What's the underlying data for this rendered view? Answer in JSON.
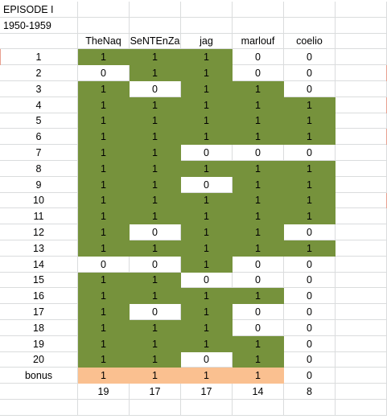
{
  "title": "EPISODE I",
  "subtitle": "1950-1959",
  "headers": [
    "TheNaq",
    "SeNTEnZa",
    "jag",
    "marlouf",
    "coelio"
  ],
  "rows": [
    {
      "label": "1",
      "values": [
        "1",
        "1",
        "1",
        "0",
        "0"
      ],
      "fill": [
        "g",
        "g",
        "g",
        "w",
        "w"
      ]
    },
    {
      "label": "2",
      "values": [
        "0",
        "1",
        "1",
        "0",
        "0"
      ],
      "fill": [
        "w",
        "g",
        "g",
        "w",
        "w"
      ]
    },
    {
      "label": "3",
      "values": [
        "1",
        "0",
        "1",
        "1",
        "0"
      ],
      "fill": [
        "g",
        "w",
        "g",
        "g",
        "w"
      ]
    },
    {
      "label": "4",
      "values": [
        "1",
        "1",
        "1",
        "1",
        "1"
      ],
      "fill": [
        "g",
        "g",
        "g",
        "g",
        "g"
      ]
    },
    {
      "label": "5",
      "values": [
        "1",
        "1",
        "1",
        "1",
        "1"
      ],
      "fill": [
        "g",
        "g",
        "g",
        "g",
        "g"
      ]
    },
    {
      "label": "6",
      "values": [
        "1",
        "1",
        "1",
        "1",
        "1"
      ],
      "fill": [
        "g",
        "g",
        "g",
        "g",
        "g"
      ]
    },
    {
      "label": "7",
      "values": [
        "1",
        "1",
        "0",
        "0",
        "0"
      ],
      "fill": [
        "g",
        "g",
        "w",
        "w",
        "w"
      ]
    },
    {
      "label": "8",
      "values": [
        "1",
        "1",
        "1",
        "1",
        "1"
      ],
      "fill": [
        "g",
        "g",
        "g",
        "g",
        "g"
      ]
    },
    {
      "label": "9",
      "values": [
        "1",
        "1",
        "0",
        "1",
        "1"
      ],
      "fill": [
        "g",
        "g",
        "w",
        "g",
        "g"
      ]
    },
    {
      "label": "10",
      "values": [
        "1",
        "1",
        "1",
        "1",
        "1"
      ],
      "fill": [
        "g",
        "g",
        "g",
        "g",
        "g"
      ]
    },
    {
      "label": "11",
      "values": [
        "1",
        "1",
        "1",
        "1",
        "1"
      ],
      "fill": [
        "g",
        "g",
        "g",
        "g",
        "g"
      ]
    },
    {
      "label": "12",
      "values": [
        "1",
        "0",
        "1",
        "1",
        "0"
      ],
      "fill": [
        "g",
        "w",
        "g",
        "g",
        "w"
      ]
    },
    {
      "label": "13",
      "values": [
        "1",
        "1",
        "1",
        "1",
        "1"
      ],
      "fill": [
        "g",
        "g",
        "g",
        "g",
        "g"
      ]
    },
    {
      "label": "14",
      "values": [
        "0",
        "0",
        "1",
        "0",
        "0"
      ],
      "fill": [
        "w",
        "w",
        "g",
        "w",
        "w"
      ]
    },
    {
      "label": "15",
      "values": [
        "1",
        "1",
        "0",
        "0",
        "0"
      ],
      "fill": [
        "g",
        "g",
        "w",
        "w",
        "w"
      ]
    },
    {
      "label": "16",
      "values": [
        "1",
        "1",
        "1",
        "1",
        "0"
      ],
      "fill": [
        "g",
        "g",
        "g",
        "g",
        "w"
      ]
    },
    {
      "label": "17",
      "values": [
        "1",
        "0",
        "1",
        "0",
        "0"
      ],
      "fill": [
        "g",
        "w",
        "g",
        "w",
        "w"
      ]
    },
    {
      "label": "18",
      "values": [
        "1",
        "1",
        "1",
        "0",
        "0"
      ],
      "fill": [
        "g",
        "g",
        "g",
        "w",
        "w"
      ]
    },
    {
      "label": "19",
      "values": [
        "1",
        "1",
        "1",
        "1",
        "0"
      ],
      "fill": [
        "g",
        "g",
        "g",
        "g",
        "w"
      ]
    },
    {
      "label": "20",
      "values": [
        "1",
        "1",
        "0",
        "1",
        "0"
      ],
      "fill": [
        "g",
        "g",
        "w",
        "g",
        "w"
      ]
    },
    {
      "label": "bonus",
      "values": [
        "1",
        "1",
        "1",
        "1",
        "0"
      ],
      "fill": [
        "p",
        "p",
        "p",
        "p",
        "w"
      ]
    }
  ],
  "totals": [
    "19",
    "17",
    "17",
    "14",
    "8"
  ],
  "colors": {
    "green": "#76923c",
    "peach": "#fac090",
    "grid": "#dadcdd"
  }
}
